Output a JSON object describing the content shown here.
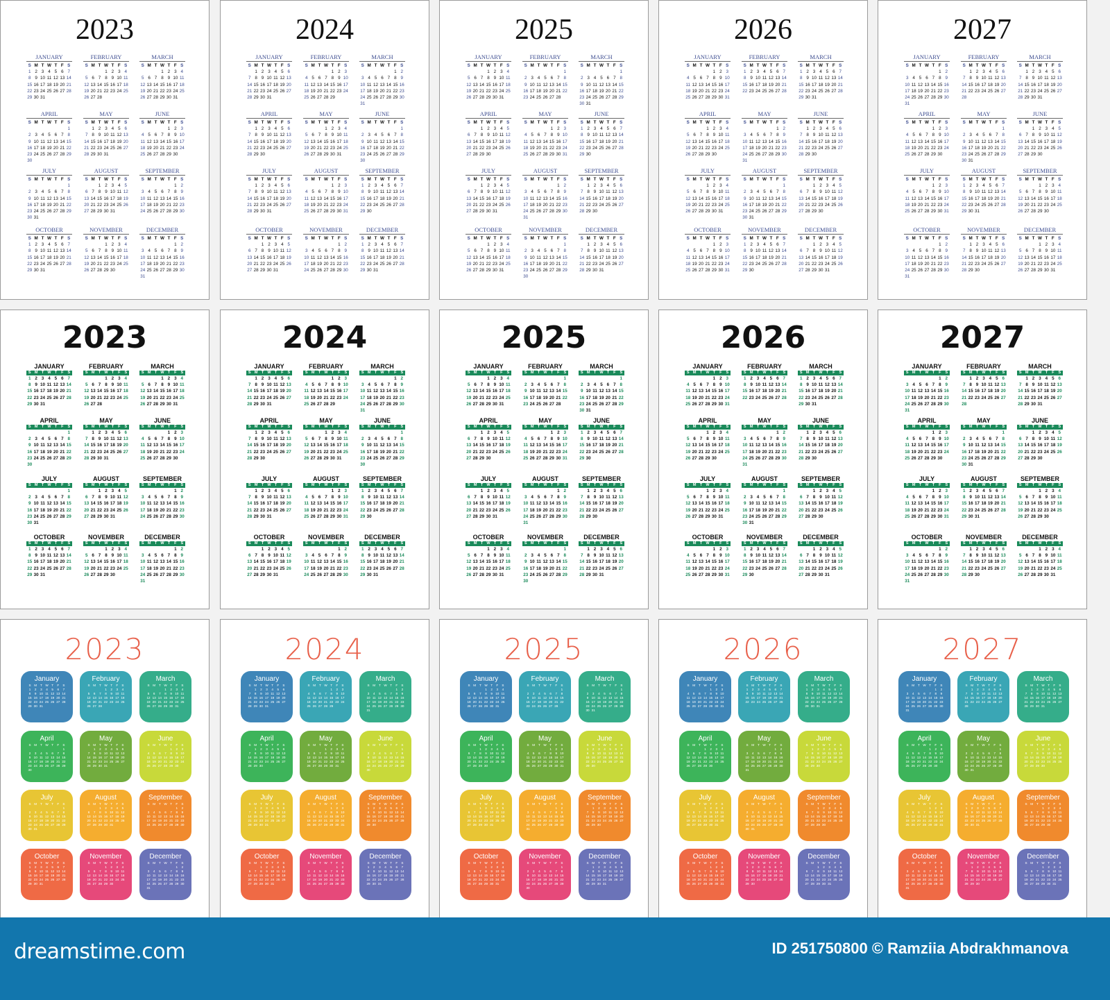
{
  "years": [
    "2023",
    "2024",
    "2025",
    "2026",
    "2027"
  ],
  "months_upper": [
    "JANUARY",
    "FEBRUARY",
    "MARCH",
    "APRIL",
    "MAY",
    "JUNE",
    "JULY",
    "AUGUST",
    "SEPTEMBER",
    "OCTOBER",
    "NOVEMBER",
    "DECEMBER"
  ],
  "months_title": [
    "January",
    "February",
    "March",
    "April",
    "May",
    "June",
    "July",
    "August",
    "September",
    "October",
    "November",
    "December"
  ],
  "weekdays": [
    "S",
    "M",
    "T",
    "W",
    "T",
    "F",
    "S"
  ],
  "styles": [
    {
      "name": "classic-serif",
      "accent": "#3a4a8e"
    },
    {
      "name": "bold-green-header",
      "accent": "#1a8a5a"
    },
    {
      "name": "colorful-tiles",
      "accent": "#e8604a"
    }
  ],
  "tile_colors": [
    "#3f86b8",
    "#3aa6b5",
    "#35ad8a",
    "#3db45a",
    "#72ac3e",
    "#c8d93a",
    "#e8c534",
    "#f5ad2f",
    "#f08a2d",
    "#ef6a45",
    "#e6497a",
    "#6b73b8"
  ],
  "footer": {
    "logo": "dreamstime.com",
    "credit": "ID 251750800 © Ramziia Abdrakhmanova",
    "background": "#1276ad"
  }
}
